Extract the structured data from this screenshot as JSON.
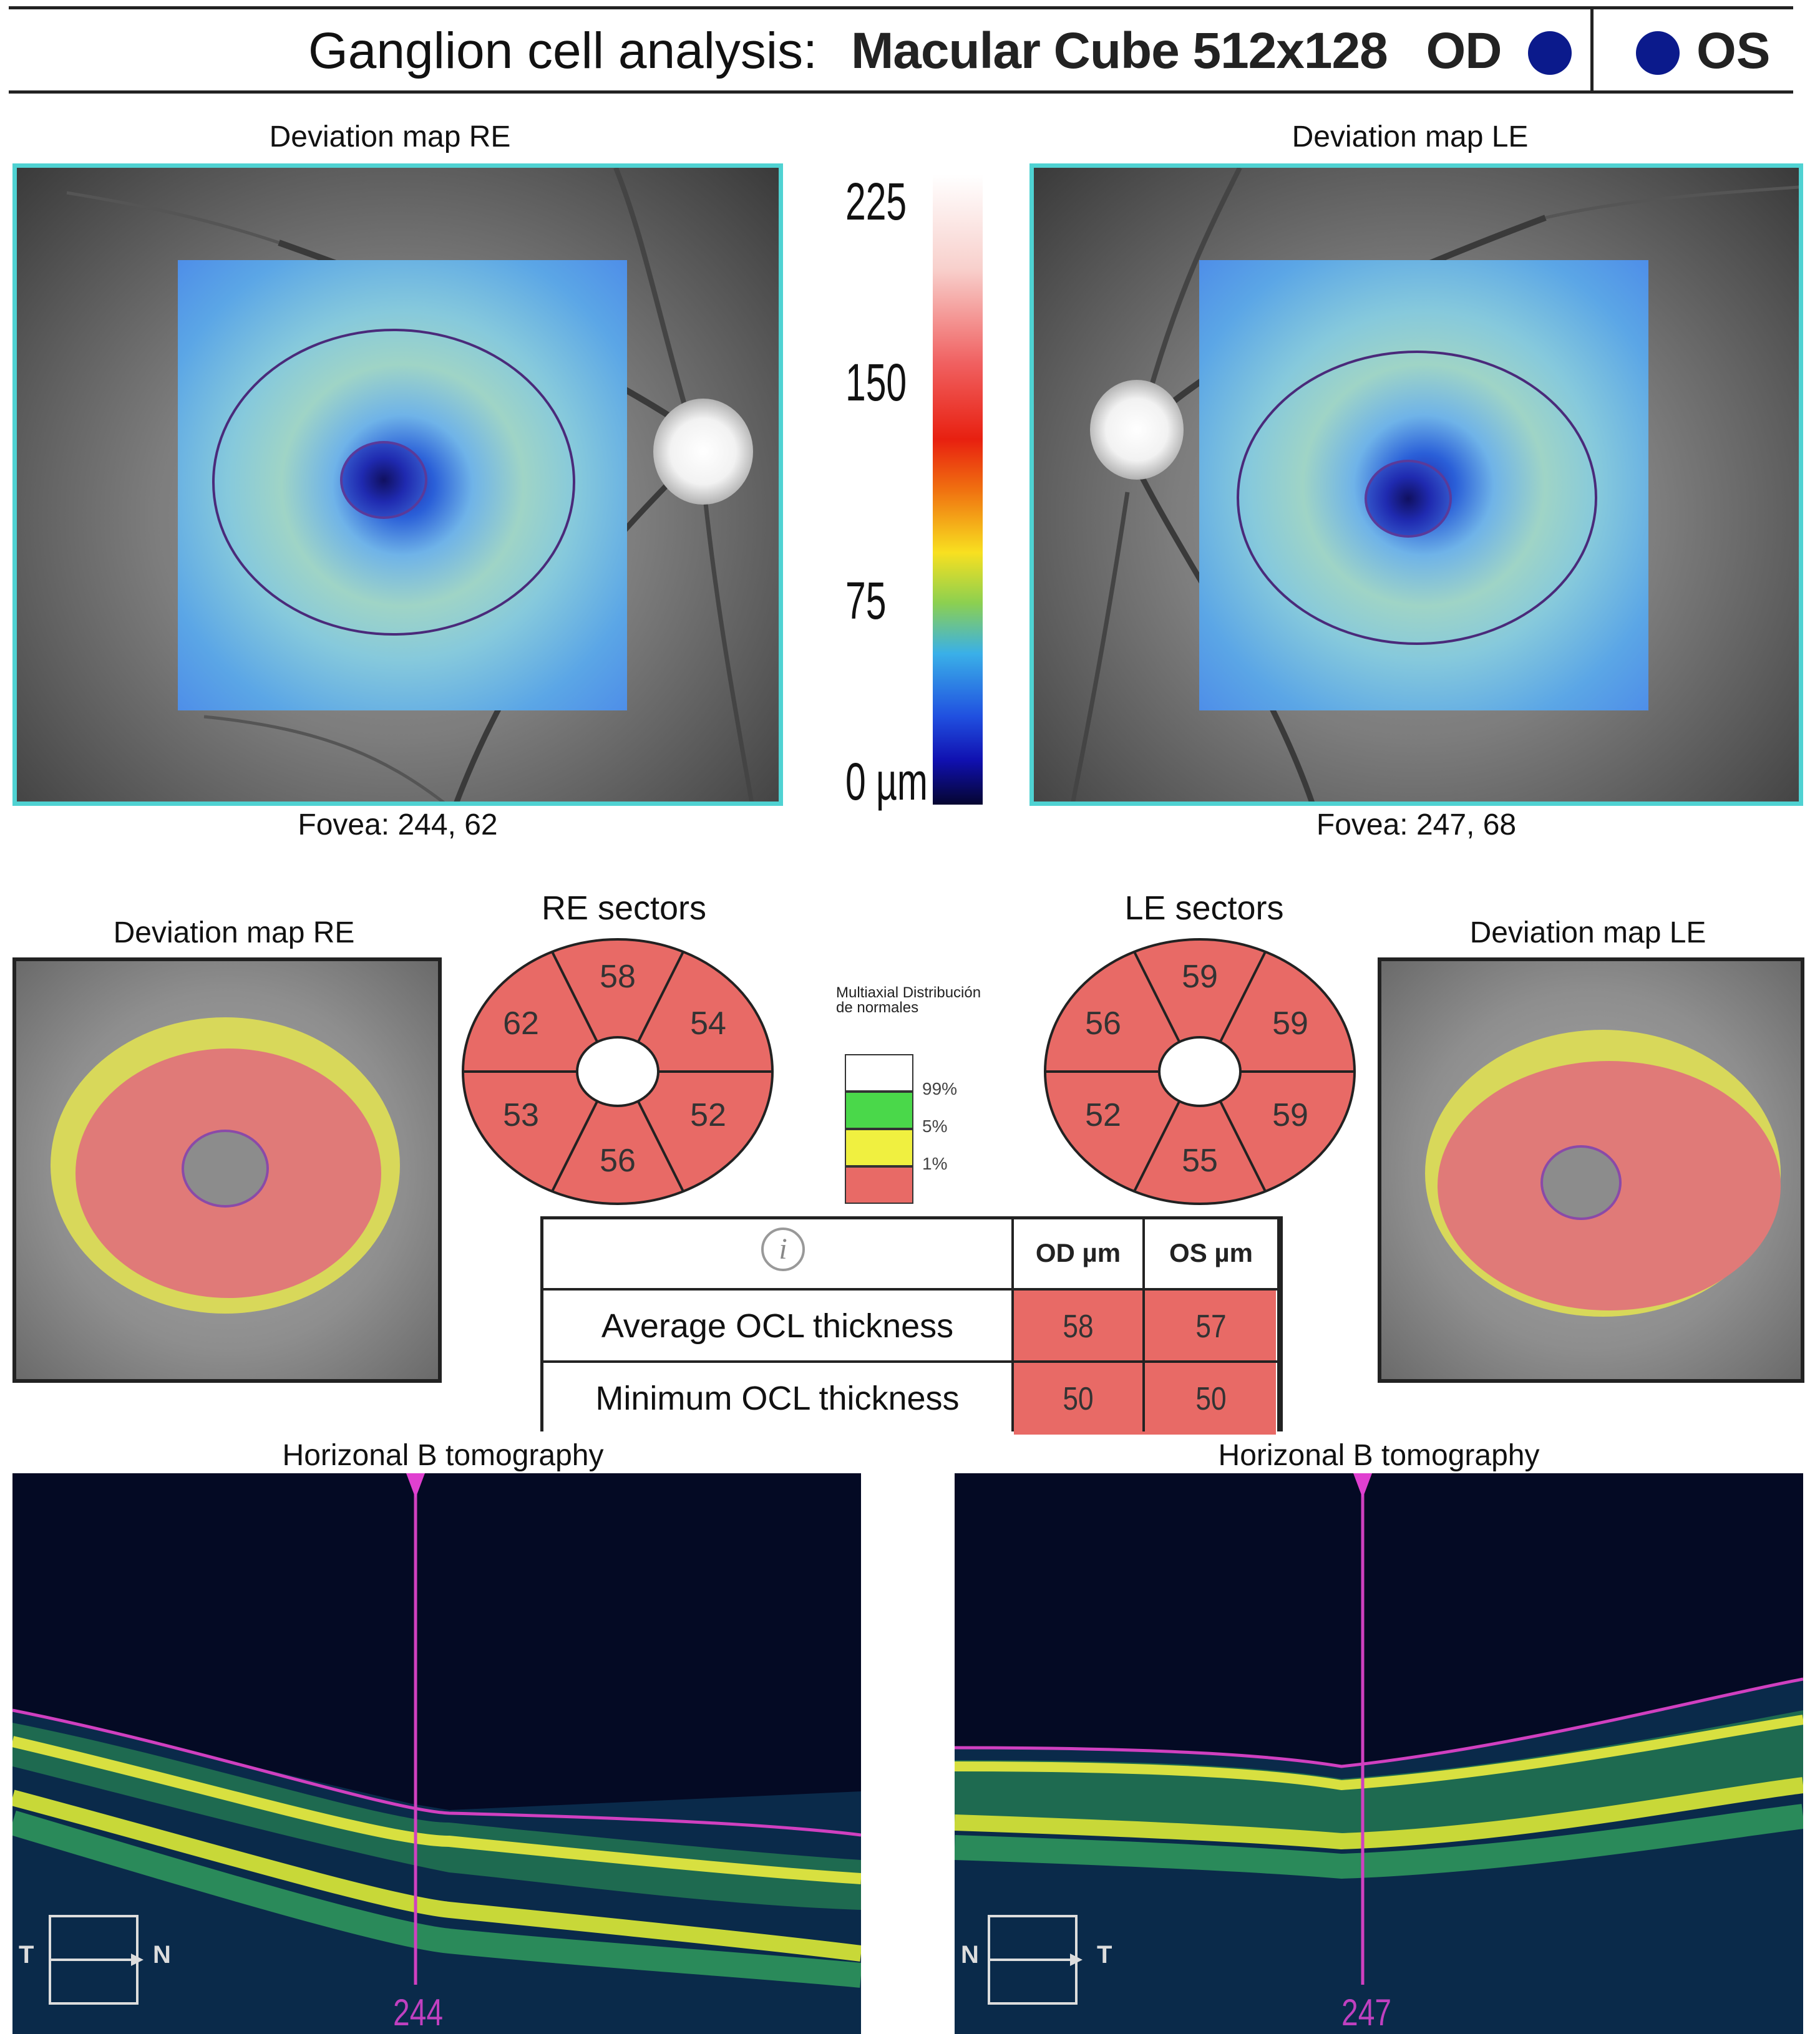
{
  "header": {
    "title": "Ganglion cell analysis:",
    "exam": "Macular Cube 512x128",
    "od": "OD",
    "os": "OS",
    "eye_dot_color": "#0b1a8c"
  },
  "top": {
    "re_title": "Deviation map RE",
    "le_title": "Deviation map LE",
    "re_fovea": "Fovea: 244, 62",
    "le_fovea": "Fovea: 247, 68",
    "scale_ticks": [
      "225",
      "150",
      "75",
      "0 µm"
    ]
  },
  "middle": {
    "re_title": "Deviation map RE",
    "le_title": "Deviation map LE",
    "re_sectors_title": "RE sectors",
    "le_sectors_title": "LE sectors",
    "re_sectors": [
      "58",
      "54",
      "52",
      "56",
      "53",
      "62"
    ],
    "le_sectors": [
      "59",
      "59",
      "59",
      "55",
      "52",
      "56"
    ],
    "legend": {
      "title": "Multiaxial Distribución de normales",
      "labels": [
        "99%",
        "5%",
        "1%"
      ],
      "colors": [
        "#ffffff",
        "#4ad84a",
        "#f0f040",
        "#e86a66"
      ]
    }
  },
  "table": {
    "info_icon": "i",
    "col_od": "OD µm",
    "col_os": "OS µm",
    "rows": [
      {
        "label": "Average OCL thickness",
        "od": "58",
        "os": "57"
      },
      {
        "label": "Minimum OCL thickness",
        "od": "50",
        "os": "50"
      }
    ]
  },
  "bottom": {
    "re_title": "Horizonal B tomography",
    "le_title": "Horizonal B tomography",
    "re_x": "244",
    "le_x": "247",
    "re_dir_left": "T",
    "re_dir_right": "N",
    "le_dir_left": "N",
    "le_dir_right": "T"
  }
}
